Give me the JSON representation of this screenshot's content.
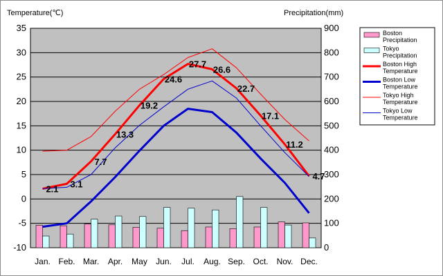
{
  "chart_data": {
    "type": "bar",
    "left_axis_title": "Temperature(℃)",
    "right_axis_title": "Precipitation(mm)",
    "left_ylim": [
      -10,
      35
    ],
    "left_ticks": [
      "35",
      "30",
      "25",
      "20",
      "15",
      "10",
      "5",
      "0",
      "-5",
      "-10"
    ],
    "right_ylim": [
      0,
      900
    ],
    "right_ticks": [
      "900",
      "800",
      "700",
      "600",
      "500",
      "400",
      "300",
      "200",
      "100",
      "0"
    ],
    "categories": [
      "Jan.",
      "Feb.",
      "Mar.",
      "Apr.",
      "May",
      "Jun.",
      "Jul.",
      "Aug.",
      "Sep.",
      "Oct.",
      "Nov.",
      "Dec."
    ],
    "grid": true,
    "legend_position": "right",
    "series": [
      {
        "name": "Boston Precipitation",
        "kind": "bar",
        "axis": "right",
        "color": "#ff99cc",
        "values": [
          92,
          90,
          97,
          94,
          84,
          80,
          70,
          85,
          78,
          85,
          106,
          102
        ]
      },
      {
        "name": "Tokyo Precipitation",
        "kind": "bar",
        "axis": "right",
        "color": "#ccffff",
        "values": [
          48,
          56,
          117,
          130,
          128,
          165,
          162,
          155,
          210,
          165,
          93,
          40
        ]
      },
      {
        "name": "Boston High Temperature",
        "kind": "line",
        "axis": "left",
        "color": "#ff0000",
        "width": 3,
        "values": [
          2.1,
          3.1,
          7.7,
          13.3,
          19.2,
          24.6,
          27.7,
          26.6,
          22.7,
          17.1,
          11.2,
          4.7
        ]
      },
      {
        "name": "Boston Low Temperature",
        "kind": "line",
        "axis": "left",
        "color": "#0000cc",
        "width": 3,
        "values": [
          -5.7,
          -5.0,
          -0.5,
          4.5,
          9.9,
          15.0,
          18.5,
          17.8,
          13.6,
          8.3,
          3.3,
          -2.9
        ]
      },
      {
        "name": "Tokyo High Temperature",
        "kind": "line",
        "axis": "left",
        "color": "#ff0000",
        "width": 1,
        "values": [
          9.8,
          10.0,
          12.8,
          18.0,
          22.5,
          25.5,
          29.0,
          30.8,
          26.9,
          21.5,
          16.3,
          11.9
        ]
      },
      {
        "name": "Tokyo Low Temperature",
        "kind": "line",
        "axis": "left",
        "color": "#0000cc",
        "width": 1,
        "values": [
          2.1,
          2.4,
          5.0,
          10.5,
          15.1,
          18.9,
          22.5,
          24.2,
          20.7,
          15.0,
          9.5,
          4.6
        ]
      }
    ],
    "data_labels": {
      "series": "Boston High Temperature",
      "values": [
        "2.1",
        "3.1",
        "7.7",
        "13.3",
        "19.2",
        "24.6",
        "27.7",
        "26.6",
        "22.7",
        "17.1",
        "11.2",
        "4.7"
      ]
    },
    "legend": [
      {
        "line1": "Boston",
        "line2": "Precipitation",
        "kind": "bar",
        "color": "#ff99cc"
      },
      {
        "line1": "Tokyo",
        "line2": "Precipitation",
        "kind": "bar",
        "color": "#ccffff"
      },
      {
        "line1": "Boston High",
        "line2": "Temperature",
        "kind": "line",
        "color": "#ff0000",
        "width": 3
      },
      {
        "line1": "Boston Low",
        "line2": "Temperature",
        "kind": "line",
        "color": "#0000cc",
        "width": 3
      },
      {
        "line1": "Tokyo High",
        "line2": "Temperature",
        "kind": "line",
        "color": "#ff0000",
        "width": 1
      },
      {
        "line1": "Tokyo Low",
        "line2": "Temperature",
        "kind": "line",
        "color": "#0000cc",
        "width": 1
      }
    ],
    "colors": {
      "plot_background": "#c0c0c0",
      "grid": "#000000"
    }
  }
}
